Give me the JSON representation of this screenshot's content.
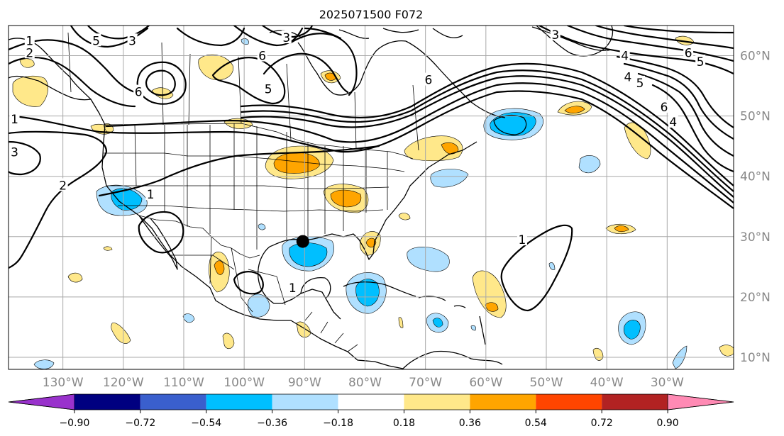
{
  "title": "2025071500 F072",
  "map": {
    "lon_range": [
      -139,
      -19
    ],
    "lat_range": [
      8,
      65
    ],
    "lon_ticks": [
      {
        "value": -130,
        "label": "130°W"
      },
      {
        "value": -120,
        "label": "120°W"
      },
      {
        "value": -110,
        "label": "110°W"
      },
      {
        "value": -100,
        "label": "100°W"
      },
      {
        "value": -90,
        "label": "90°W"
      },
      {
        "value": -80,
        "label": "80°W"
      },
      {
        "value": -70,
        "label": "70°W"
      },
      {
        "value": -60,
        "label": "60°W"
      },
      {
        "value": -50,
        "label": "50°W"
      },
      {
        "value": -40,
        "label": "40°W"
      },
      {
        "value": -30,
        "label": "30°W"
      }
    ],
    "lat_ticks": [
      {
        "value": 10,
        "label": "10°N"
      },
      {
        "value": 20,
        "label": "20°N"
      },
      {
        "value": 30,
        "label": "30°N"
      },
      {
        "value": 40,
        "label": "40°N"
      },
      {
        "value": 50,
        "label": "50°N"
      },
      {
        "value": 60,
        "label": "60°N"
      }
    ],
    "grid": true,
    "projection": "plate-carree",
    "storm_marker": {
      "lon": -90.3,
      "lat": 29.2,
      "color": "#000000"
    }
  },
  "colorbar": {
    "orientation": "horizontal",
    "location": "bottom",
    "extend": "both",
    "boundaries": [
      "−0.90",
      "−0.72",
      "−0.54",
      "−0.36",
      "−0.18",
      "0.18",
      "0.36",
      "0.54",
      "0.72",
      "0.90"
    ],
    "colors": {
      "under": "#9932cc",
      "bins": [
        "#000080",
        "#3a5fcd",
        "#00bfff",
        "#b0e0ff",
        "#ffffff",
        "#ffe88a",
        "#ffa500",
        "#ff4500",
        "#b22222"
      ],
      "over": "#ff8ab4"
    }
  },
  "contour_labels": [
    {
      "text": "1",
      "lon": -135.5,
      "lat": 62.5
    },
    {
      "text": "2",
      "lon": -135.5,
      "lat": 60.5
    },
    {
      "text": "5",
      "lon": -124.5,
      "lat": 62.5
    },
    {
      "text": "3",
      "lon": -118.5,
      "lat": 62.5
    },
    {
      "text": "6",
      "lon": -117.5,
      "lat": 54
    },
    {
      "text": "6",
      "lon": -97,
      "lat": 60
    },
    {
      "text": "3",
      "lon": -93,
      "lat": 63
    },
    {
      "text": "5",
      "lon": -96,
      "lat": 54.5
    },
    {
      "text": "6",
      "lon": -69.5,
      "lat": 56
    },
    {
      "text": "3",
      "lon": -48.5,
      "lat": 63.5
    },
    {
      "text": "4",
      "lon": -37,
      "lat": 60
    },
    {
      "text": "6",
      "lon": -26.5,
      "lat": 60.5
    },
    {
      "text": "5",
      "lon": -24.5,
      "lat": 59
    },
    {
      "text": "4",
      "lon": -36.5,
      "lat": 56.5
    },
    {
      "text": "5",
      "lon": -34.5,
      "lat": 55.5
    },
    {
      "text": "6",
      "lon": -30.5,
      "lat": 51.5
    },
    {
      "text": "4",
      "lon": -29,
      "lat": 49
    },
    {
      "text": "1",
      "lon": -138,
      "lat": 49.5
    },
    {
      "text": "3",
      "lon": -138,
      "lat": 44
    },
    {
      "text": "2",
      "lon": -130,
      "lat": 38.5
    },
    {
      "text": "1",
      "lon": -115.5,
      "lat": 37
    },
    {
      "text": "1",
      "lon": -92,
      "lat": 21.5
    },
    {
      "text": "1",
      "lon": -54,
      "lat": 29.5
    }
  ]
}
